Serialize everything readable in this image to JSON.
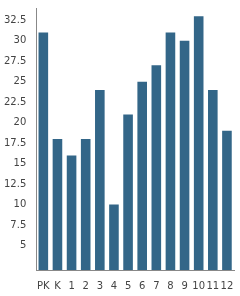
{
  "chart_data": {
    "type": "bar",
    "categories": [
      "PK",
      "K",
      "1",
      "2",
      "3",
      "4",
      "5",
      "6",
      "7",
      "8",
      "9",
      "10",
      "11",
      "12"
    ],
    "values": [
      31,
      18,
      16,
      18,
      24,
      10,
      21,
      25,
      27,
      31,
      30,
      33,
      24,
      19
    ],
    "color": "#336688",
    "ylim": [
      2,
      34
    ],
    "yticks": [
      5,
      7.5,
      10,
      12.5,
      15,
      17.5,
      20,
      22.5,
      25,
      27.5,
      30,
      32.5
    ],
    "grid": false
  }
}
